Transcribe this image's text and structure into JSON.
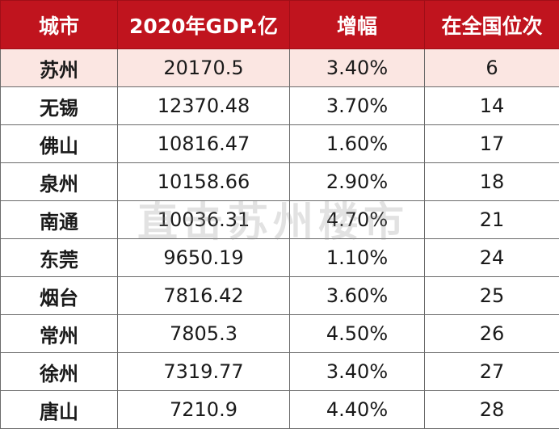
{
  "chart_data": {
    "type": "table",
    "columns": [
      "城市",
      "2020年GDP.亿",
      "增幅",
      "在全国位次"
    ],
    "rows": [
      {
        "city": "苏州",
        "gdp": "20170.5",
        "growth": "3.40%",
        "rank": "6"
      },
      {
        "city": "无锡",
        "gdp": "12370.48",
        "growth": "3.70%",
        "rank": "14"
      },
      {
        "city": "佛山",
        "gdp": "10816.47",
        "growth": "1.60%",
        "rank": "17"
      },
      {
        "city": "泉州",
        "gdp": "10158.66",
        "growth": "2.90%",
        "rank": "18"
      },
      {
        "city": "南通",
        "gdp": "10036.31",
        "growth": "4.70%",
        "rank": "21"
      },
      {
        "city": "东莞",
        "gdp": "9650.19",
        "growth": "1.10%",
        "rank": "24"
      },
      {
        "city": "烟台",
        "gdp": "7816.42",
        "growth": "3.60%",
        "rank": "25"
      },
      {
        "city": "常州",
        "gdp": "7805.3",
        "growth": "4.50%",
        "rank": "26"
      },
      {
        "city": "徐州",
        "gdp": "7319.77",
        "growth": "3.40%",
        "rank": "27"
      },
      {
        "city": "唐山",
        "gdp": "7210.9",
        "growth": "4.40%",
        "rank": "28"
      }
    ],
    "highlight_row": 0
  },
  "watermark": "直击苏州楼市",
  "colors": {
    "header_bg": "#c0141e",
    "header_text": "#ffffff",
    "highlight_row_bg": "#fbe6e2",
    "border": "#6b6b6b"
  }
}
